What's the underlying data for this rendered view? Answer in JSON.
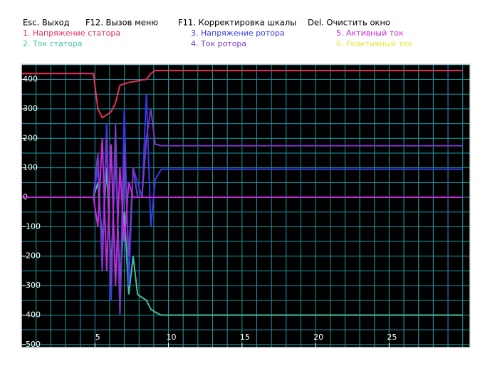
{
  "menu": [
    "Esc. Выход",
    "F12. Вызов меню",
    "F11. Корректировка шкалы",
    "Del. Очистить окно"
  ],
  "chart_data": {
    "type": "line",
    "x": [
      0,
      4.9,
      5.2,
      5.5,
      5.8,
      6.1,
      6.4,
      6.7,
      7.0,
      7.3,
      7.6,
      7.9,
      8.2,
      8.5,
      8.8,
      9.1,
      9.5,
      10,
      15,
      20,
      25,
      30
    ],
    "series": [
      {
        "name": "1. Напряжение статора",
        "color": "#e8305a",
        "values": [
          420,
          420,
          300,
          270,
          280,
          290,
          320,
          380,
          385,
          390,
          392,
          395,
          398,
          400,
          420,
          430,
          430,
          430,
          430,
          430,
          430,
          430
        ]
      },
      {
        "name": "2. Ток статора",
        "color": "#40c0a0",
        "values": [
          0,
          0,
          50,
          -150,
          100,
          -250,
          150,
          -300,
          -50,
          -330,
          -200,
          -330,
          -340,
          -350,
          -380,
          -390,
          -400,
          -400,
          -400,
          -400,
          -400,
          -400
        ]
      },
      {
        "name": "3. Напряжение ротора",
        "color": "#3838e8",
        "values": [
          0,
          0,
          100,
          -200,
          250,
          -350,
          200,
          -380,
          300,
          -300,
          100,
          50,
          0,
          350,
          -100,
          60,
          95,
          95,
          95,
          95,
          95,
          95
        ]
      },
      {
        "name": "4. Ток ротора",
        "color": "#7838c8",
        "values": [
          0,
          0,
          150,
          -250,
          200,
          -300,
          250,
          -400,
          150,
          -200,
          100,
          0,
          0,
          200,
          300,
          180,
          175,
          175,
          175,
          175,
          175,
          175
        ]
      },
      {
        "name": "5. Активный ток",
        "color": "#c828e0",
        "values": [
          0,
          0,
          -100,
          200,
          -250,
          180,
          -300,
          100,
          -150,
          50,
          0,
          0,
          0,
          0,
          0,
          0,
          0,
          0,
          0,
          0,
          0,
          0
        ]
      },
      {
        "name": "6. Реактивный ток",
        "color": "#e8e840",
        "values": [
          null,
          null,
          null,
          null,
          null,
          null,
          null,
          null,
          null,
          null,
          null,
          null,
          null,
          null,
          null,
          null,
          null,
          null,
          null,
          null,
          null,
          null
        ]
      }
    ],
    "xlim": [
      0,
      30.5
    ],
    "xticks": [
      5,
      10,
      15,
      20,
      25
    ],
    "x_minor_ticks": [
      1,
      2,
      3,
      4,
      5,
      6,
      7,
      8,
      9,
      10,
      11,
      12,
      13,
      14,
      15,
      16,
      17,
      18,
      19,
      20,
      21,
      22,
      23,
      24,
      25,
      26,
      27,
      28,
      29,
      30
    ],
    "ylim": [
      -510,
      452
    ],
    "yticks": [
      400,
      300,
      200,
      100,
      0,
      -100,
      -200,
      -300,
      -400,
      -500
    ],
    "y_minor_ticks": [
      450,
      400,
      350,
      300,
      250,
      200,
      150,
      100,
      50,
      0,
      -50,
      -100,
      -150,
      -200,
      -250,
      -300,
      -350,
      -400,
      -450,
      -500
    ],
    "grid": true
  }
}
